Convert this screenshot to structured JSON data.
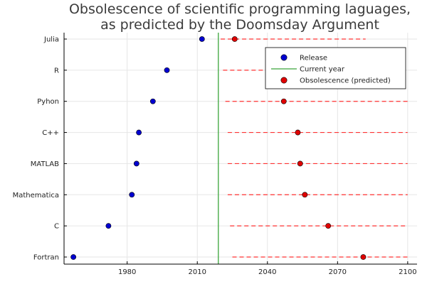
{
  "chart_data": {
    "type": "scatter",
    "title_lines": [
      "Obsolescence of scientific programming laguages,",
      "as predicted by the Doomsday Argument"
    ],
    "categories": [
      "Fortran",
      "C",
      "Mathematica",
      "MATLAB",
      "C++",
      "Pyhon",
      "R",
      "Julia"
    ],
    "x_ticks": [
      1980,
      2010,
      2040,
      2070,
      2100
    ],
    "xlim": [
      1953,
      2104
    ],
    "current_year": 2019,
    "series": [
      {
        "name": "Release",
        "color": "#0000d0",
        "values": [
          1957,
          1972,
          1982,
          1984,
          1985,
          1991,
          1997,
          2012
        ]
      },
      {
        "name": "Obsolescence (predicted)",
        "color": "#e00000",
        "values": [
          2081,
          2066,
          2056,
          2054,
          2053,
          2047,
          2042,
          2026
        ]
      }
    ],
    "ranges": [
      {
        "from": 2025,
        "to": 2100
      },
      {
        "from": 2024,
        "to": 2099
      },
      {
        "from": 2023,
        "to": 2100
      },
      {
        "from": 2023,
        "to": 2100
      },
      {
        "from": 2023,
        "to": 2100
      },
      {
        "from": 2022,
        "to": 2100
      },
      {
        "from": 2021,
        "to": 2099
      },
      {
        "from": 2020,
        "to": 2082
      }
    ],
    "legend": {
      "position": "top-right",
      "entries": [
        "Release",
        "Current year",
        "Obsolescence (predicted)"
      ]
    },
    "colors": {
      "current_year_line": "#3aa53a",
      "range_line": "#ff3333",
      "grid": "#e6e6e6"
    },
    "grid": true
  }
}
